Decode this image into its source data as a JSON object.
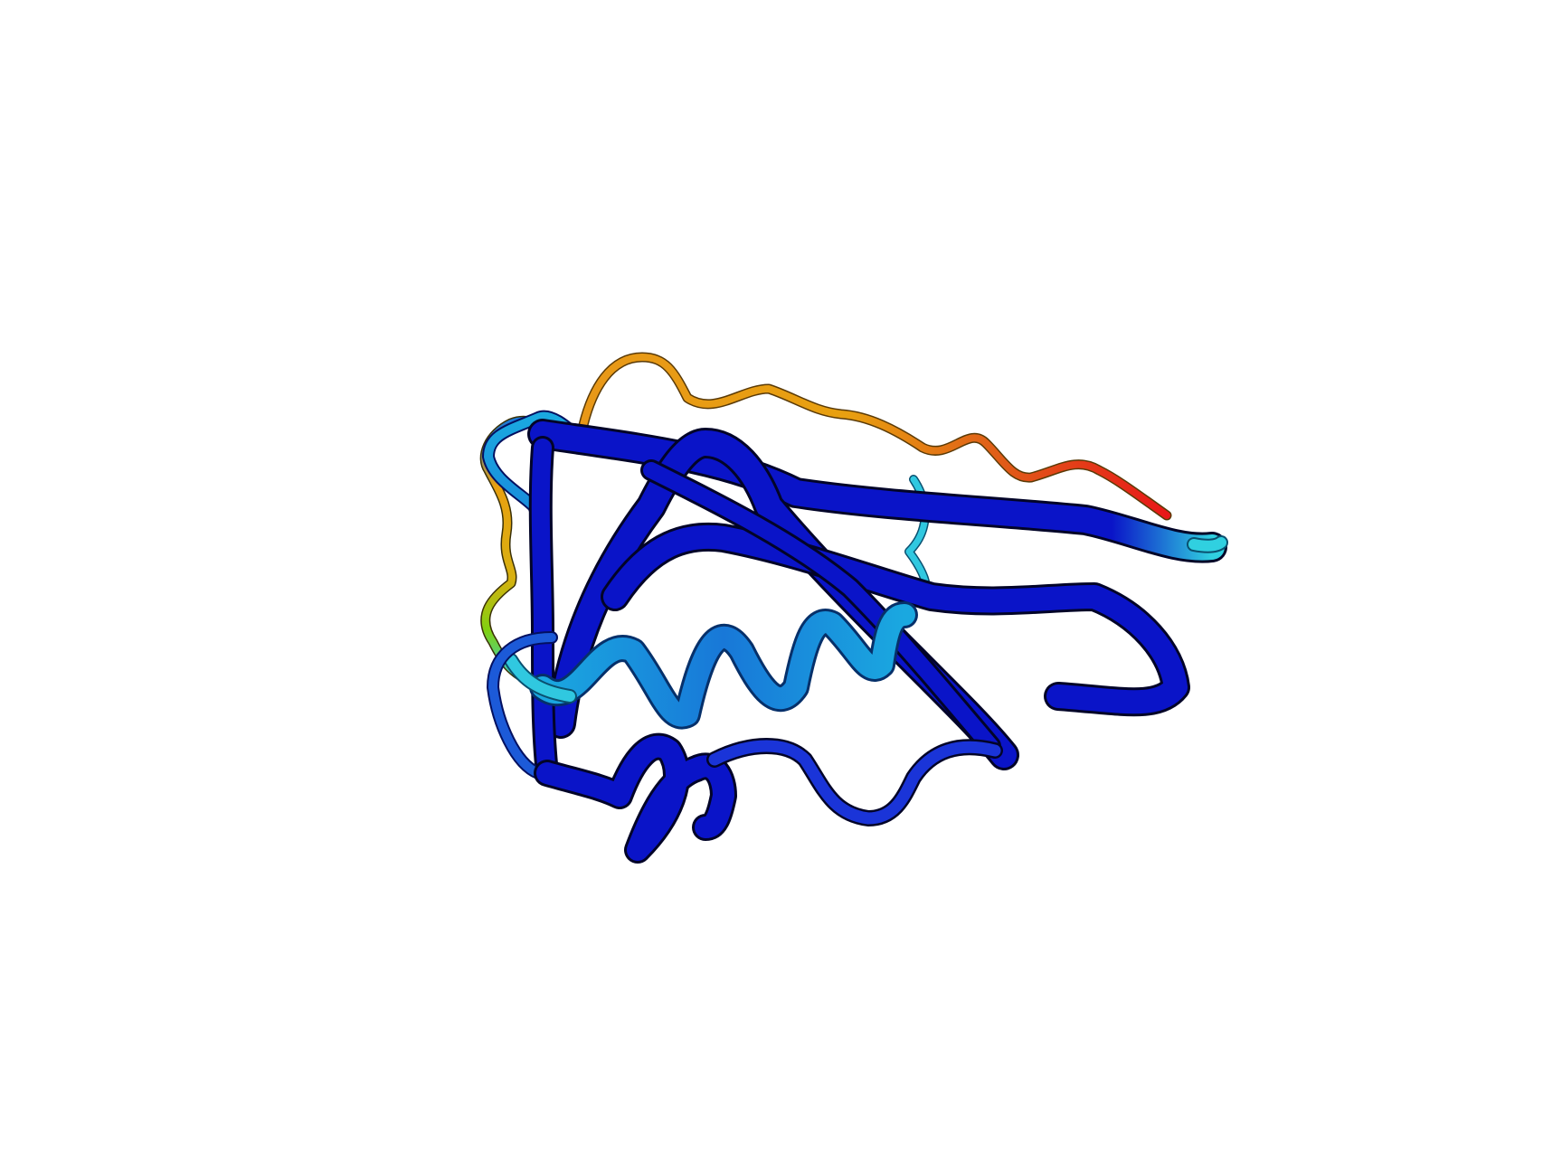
{
  "scene": {
    "background_color": "#ffffff",
    "subject": "protein-cartoon-ribbon",
    "coloring": "rainbow-by-value",
    "palette": {
      "deep_blue": "#0a14c8",
      "blue": "#1e3cdc",
      "mid_blue": "#1878d8",
      "light_blue": "#1aa8e0",
      "cyan": "#30d0e0",
      "green": "#80d010",
      "yellow": "#e8b808",
      "orange": "#e08818",
      "red_orange": "#e85018",
      "red": "#e81818",
      "dark_edge": "#020428"
    },
    "secondary_structures": [
      {
        "kind": "beta-strand",
        "count": 6
      },
      {
        "kind": "alpha-helix",
        "count": 2
      },
      {
        "kind": "loop",
        "count": 5
      }
    ]
  }
}
